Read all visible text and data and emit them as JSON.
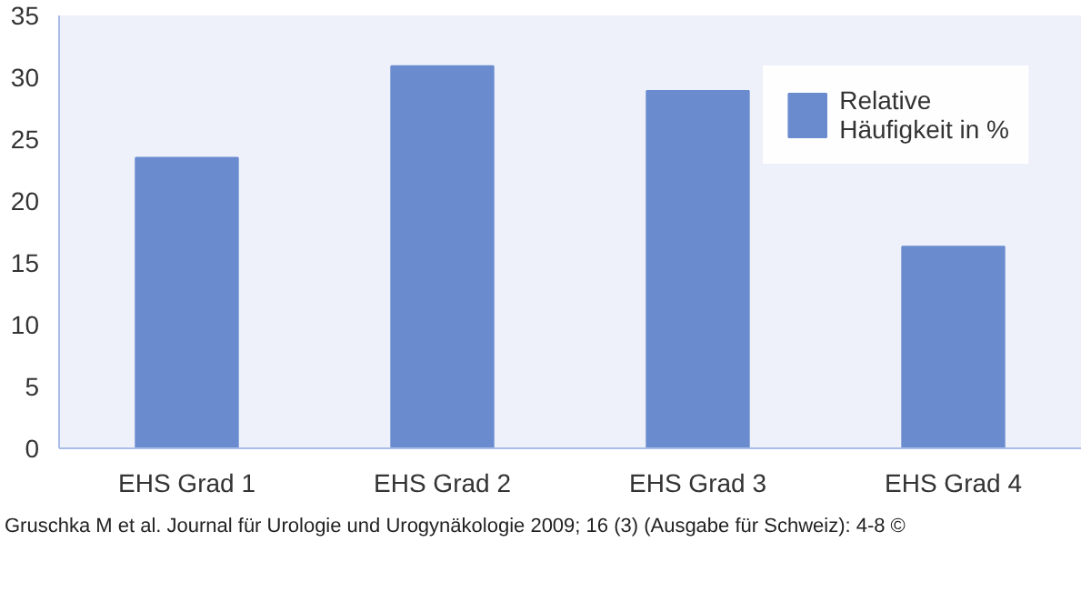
{
  "chart_data": {
    "type": "bar",
    "categories": [
      "EHS Grad 1",
      "EHS Grad 2",
      "EHS Grad 3",
      "EHS Grad 4"
    ],
    "series": [
      {
        "name": "Relative Häufigkeit in %",
        "color": "#6a8ccf",
        "values": [
          23.5,
          30.9,
          28.9,
          16.3
        ]
      }
    ],
    "ylim": [
      0,
      35
    ],
    "yticks": [
      0,
      5,
      10,
      15,
      20,
      25,
      30,
      35
    ],
    "grid": false,
    "legend": "top right",
    "annotations": [
      "Gruschka M et al. Journal für Urologie und Urogynäkologie 2009; 16 (3) (Ausgabe für Schweiz): 4-8 ©"
    ]
  }
}
